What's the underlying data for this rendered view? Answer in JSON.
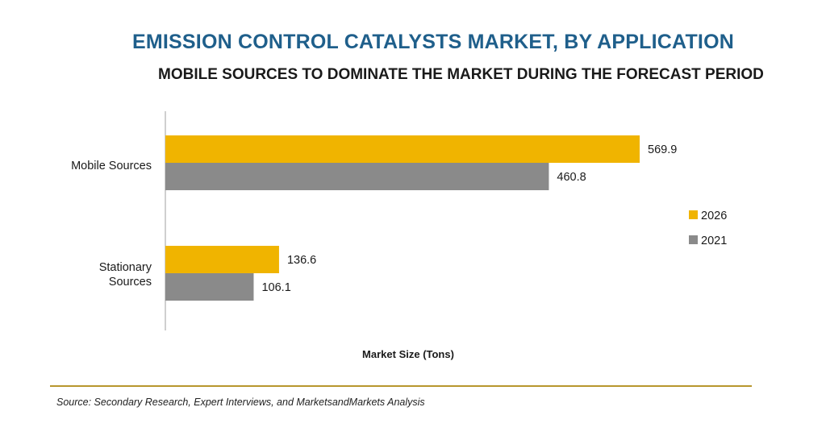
{
  "header": {
    "title": "EMISSION CONTROL CATALYSTS MARKET, BY APPLICATION",
    "subtitle": "MOBILE SOURCES TO DOMINATE THE MARKET DURING THE FORECAST PERIOD"
  },
  "footer": {
    "source": "Source: Secondary Research, Expert Interviews, and MarketsandMarkets Analysis"
  },
  "chart_data": {
    "type": "bar",
    "orientation": "horizontal",
    "title": "EMISSION CONTROL CATALYSTS MARKET, BY APPLICATION",
    "subtitle": "MOBILE SOURCES TO DOMINATE THE MARKET DURING THE FORECAST PERIOD",
    "xlabel": "Market Size (Tons)",
    "ylabel": "",
    "categories": [
      [
        "Mobile Sources"
      ],
      [
        "Stationary",
        "Sources"
      ]
    ],
    "series": [
      {
        "name": "2026",
        "color": "#f0b400",
        "values": [
          569.9,
          136.6
        ],
        "labels": [
          "569.9",
          "136.6"
        ]
      },
      {
        "name": "2021",
        "color": "#8a8a8a",
        "values": [
          460.8,
          106.1
        ],
        "labels": [
          "460.8",
          "106.1"
        ]
      }
    ],
    "xlim": [
      0,
      600
    ],
    "grid": false,
    "legend": "right"
  }
}
